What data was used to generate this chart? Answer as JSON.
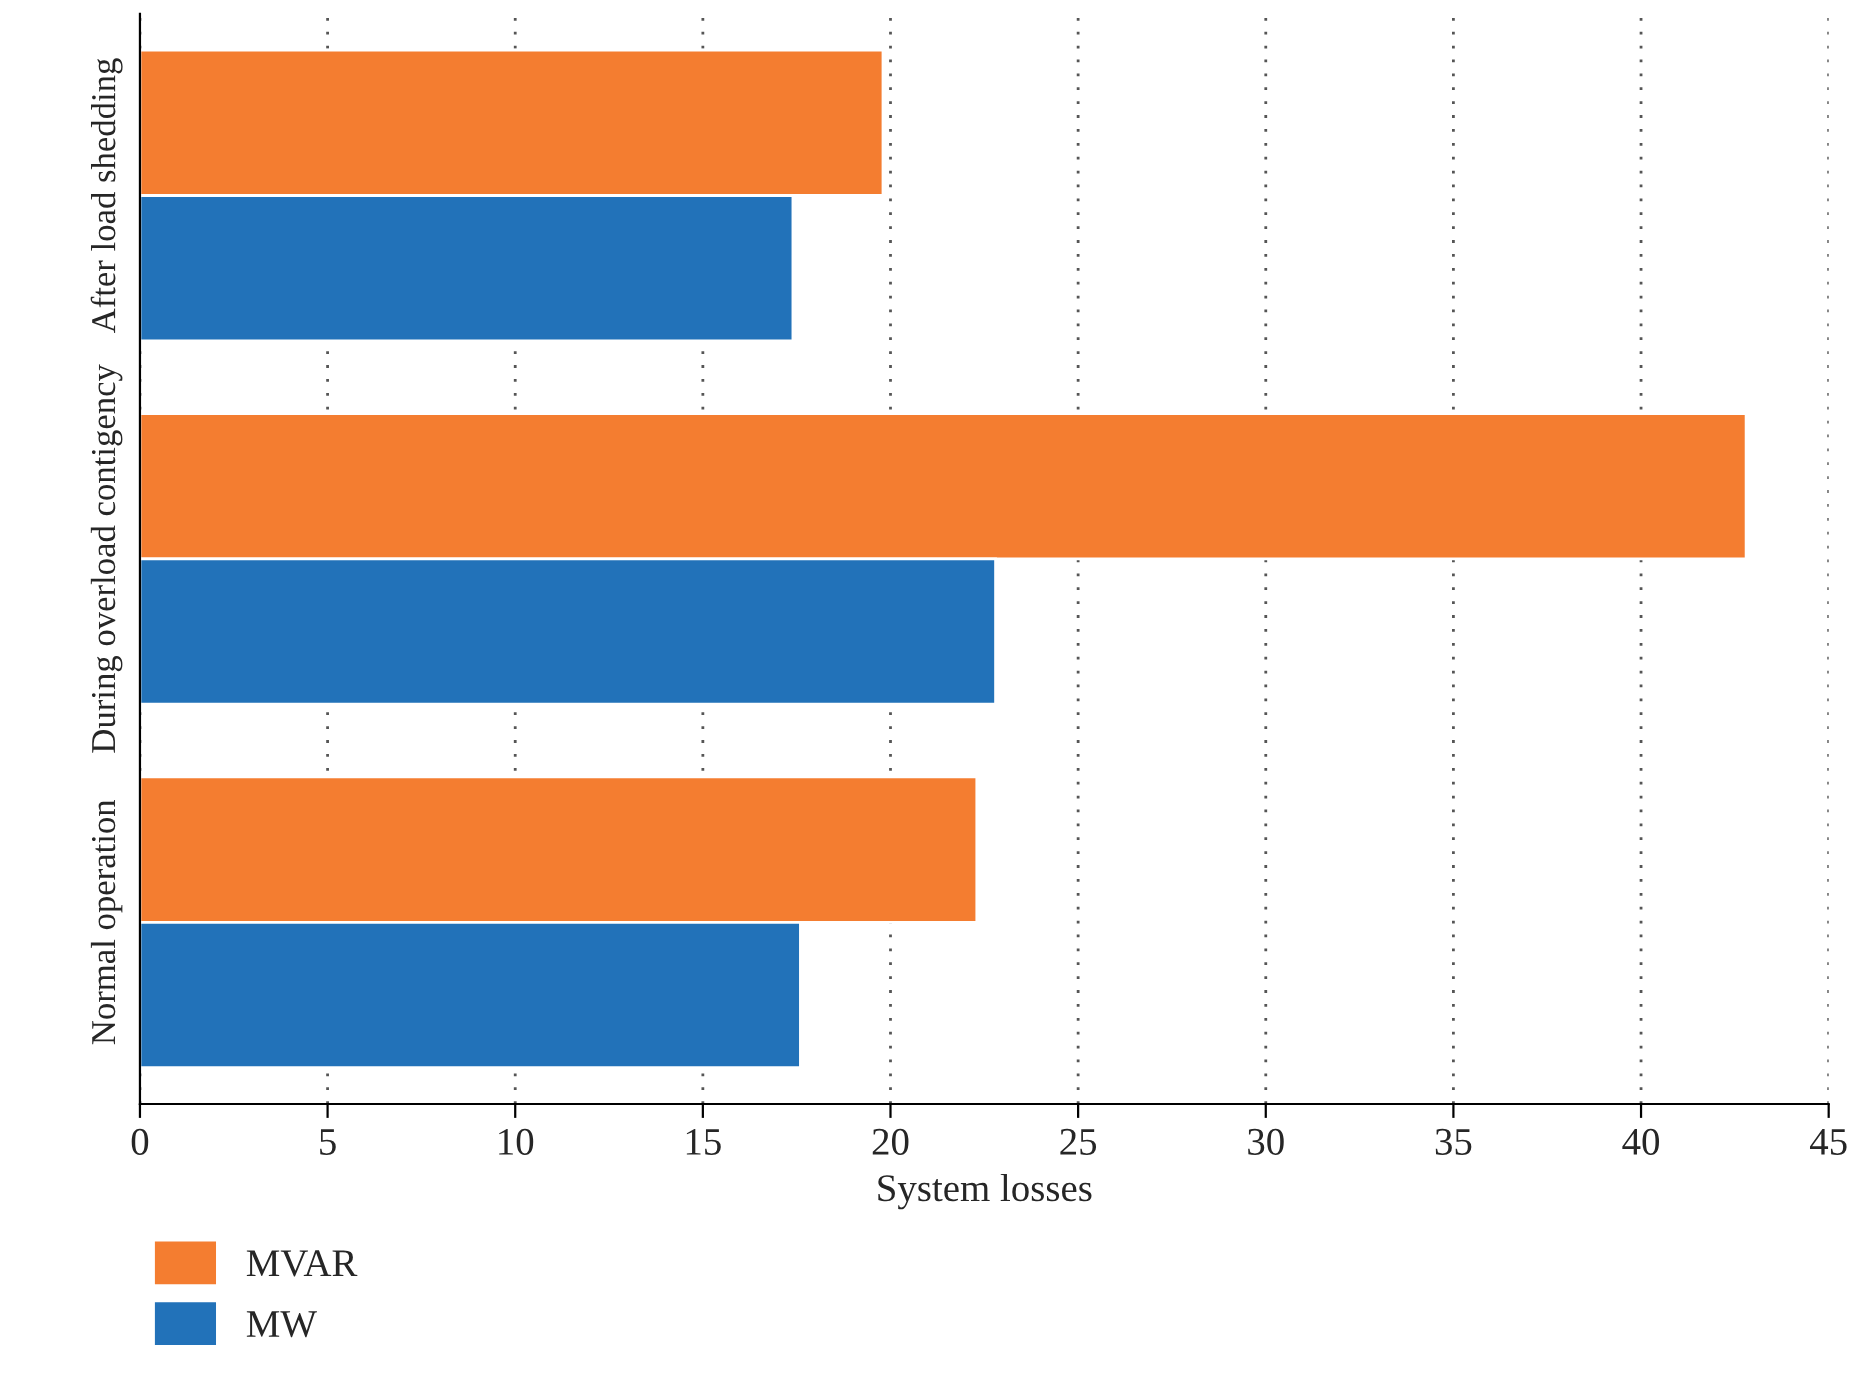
{
  "chart_data": {
    "type": "bar",
    "orientation": "horizontal",
    "xlabel": "System losses",
    "categories": [
      "After load shedding",
      "During overload contigency",
      "Normal operation"
    ],
    "series": [
      {
        "name": "MVAR",
        "color": "#f47d30",
        "values": [
          19.8,
          42.8,
          22.3
        ]
      },
      {
        "name": "MW",
        "color": "#2272b9",
        "values": [
          17.4,
          22.8,
          17.6
        ]
      }
    ],
    "xlim": [
      0,
      45
    ],
    "xticks": [
      0,
      5,
      10,
      15,
      20,
      25,
      30,
      35,
      40,
      45
    ],
    "grid": "x",
    "legend": "bottom left"
  }
}
